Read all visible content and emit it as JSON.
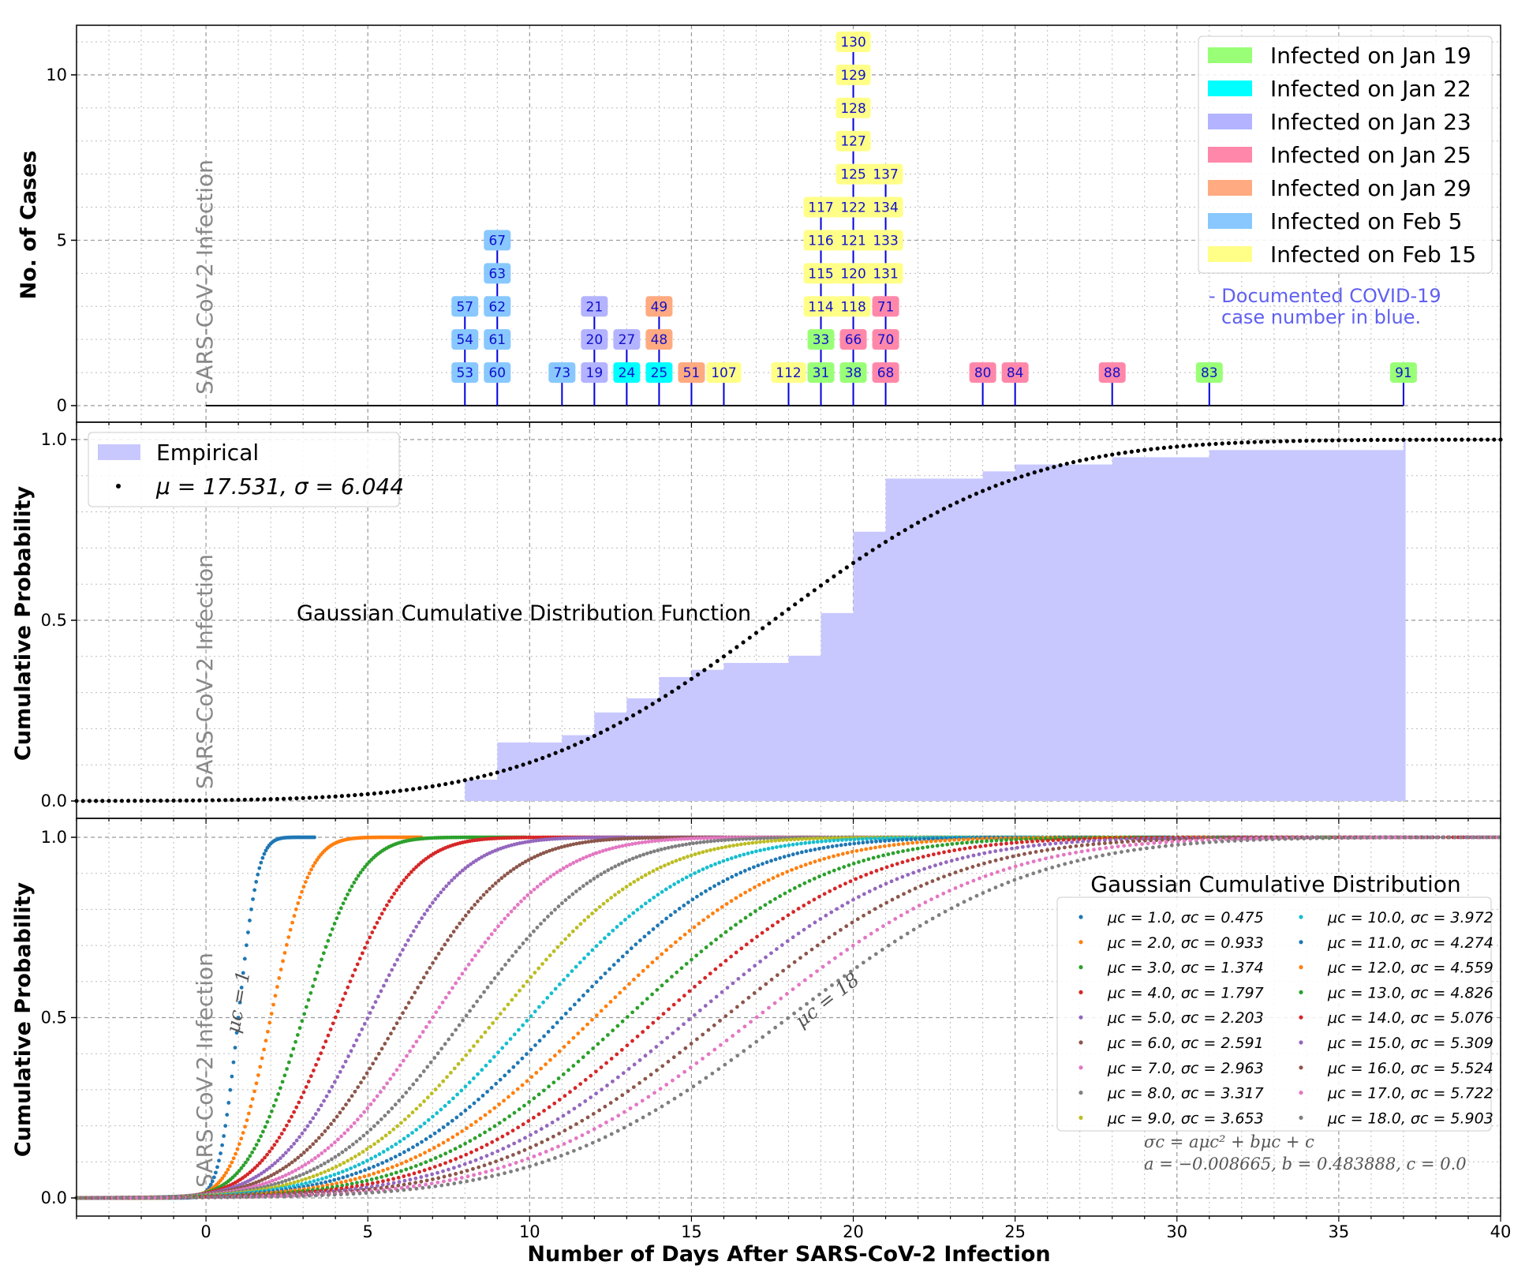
{
  "colors": {
    "jan19": "#99ff77",
    "jan22": "#00ffff",
    "jan23": "#b3b3ff",
    "jan25": "#ff88aa",
    "jan29": "#ffaa80",
    "feb5": "#88c8ff",
    "feb15": "#ffff88",
    "stem": "#0000dd",
    "empirical": "#c8c8ff"
  },
  "chart_data": [
    {
      "type": "bar",
      "panel": "top",
      "xlabel": "",
      "ylabel": "No. of Cases",
      "xlim": [
        -4,
        40
      ],
      "ylim": [
        0,
        11.5
      ],
      "yticks": [
        "0",
        "5",
        "10"
      ],
      "vertical_label": "SARS-CoV-2 Infection",
      "legend": [
        {
          "label": "Infected on Jan 19",
          "color_key": "jan19"
        },
        {
          "label": "Infected on Jan 22",
          "color_key": "jan22"
        },
        {
          "label": "Infected on Jan 23",
          "color_key": "jan23"
        },
        {
          "label": "Infected on Jan 25",
          "color_key": "jan25"
        },
        {
          "label": "Infected on Jan 29",
          "color_key": "jan29"
        },
        {
          "label": "Infected on Feb 5",
          "color_key": "feb5"
        },
        {
          "label": "Infected on Feb 15",
          "color_key": "feb15"
        }
      ],
      "note_line1": "- Documented COVID-19",
      "note_line2": "case number in blue.",
      "stems": [
        {
          "x": 8,
          "cases": [
            {
              "id": "53",
              "g": "feb5"
            },
            {
              "id": "54",
              "g": "feb5"
            },
            {
              "id": "57",
              "g": "feb5"
            }
          ]
        },
        {
          "x": 9,
          "cases": [
            {
              "id": "60",
              "g": "feb5"
            },
            {
              "id": "61",
              "g": "feb5"
            },
            {
              "id": "62",
              "g": "feb5"
            },
            {
              "id": "63",
              "g": "feb5"
            },
            {
              "id": "67",
              "g": "feb5"
            }
          ]
        },
        {
          "x": 11,
          "cases": [
            {
              "id": "73",
              "g": "feb5"
            }
          ]
        },
        {
          "x": 12,
          "cases": [
            {
              "id": "19",
              "g": "jan23"
            },
            {
              "id": "20",
              "g": "jan23"
            },
            {
              "id": "21",
              "g": "jan23"
            }
          ]
        },
        {
          "x": 13,
          "cases": [
            {
              "id": "24",
              "g": "jan22"
            },
            {
              "id": "27",
              "g": "jan23"
            }
          ]
        },
        {
          "x": 14,
          "cases": [
            {
              "id": "25",
              "g": "jan22"
            },
            {
              "id": "48",
              "g": "jan29"
            },
            {
              "id": "49",
              "g": "jan29"
            }
          ]
        },
        {
          "x": 15,
          "cases": [
            {
              "id": "51",
              "g": "jan29"
            }
          ]
        },
        {
          "x": 16,
          "cases": [
            {
              "id": "107",
              "g": "feb15"
            }
          ]
        },
        {
          "x": 18,
          "cases": [
            {
              "id": "112",
              "g": "feb15"
            }
          ]
        },
        {
          "x": 19,
          "cases": [
            {
              "id": "31",
              "g": "jan19"
            },
            {
              "id": "33",
              "g": "jan19"
            },
            {
              "id": "114",
              "g": "feb15"
            },
            {
              "id": "115",
              "g": "feb15"
            },
            {
              "id": "116",
              "g": "feb15"
            },
            {
              "id": "117",
              "g": "feb15"
            }
          ]
        },
        {
          "x": 20,
          "cases": [
            {
              "id": "38",
              "g": "jan19"
            },
            {
              "id": "66",
              "g": "jan25"
            },
            {
              "id": "118",
              "g": "feb15"
            },
            {
              "id": "120",
              "g": "feb15"
            },
            {
              "id": "121",
              "g": "feb15"
            },
            {
              "id": "122",
              "g": "feb15"
            },
            {
              "id": "125",
              "g": "feb15"
            },
            {
              "id": "127",
              "g": "feb15"
            },
            {
              "id": "128",
              "g": "feb15"
            },
            {
              "id": "129",
              "g": "feb15"
            },
            {
              "id": "130",
              "g": "feb15"
            }
          ]
        },
        {
          "x": 21,
          "cases": [
            {
              "id": "68",
              "g": "jan25"
            },
            {
              "id": "70",
              "g": "jan25"
            },
            {
              "id": "71",
              "g": "jan25"
            },
            {
              "id": "131",
              "g": "feb15"
            },
            {
              "id": "133",
              "g": "feb15"
            },
            {
              "id": "134",
              "g": "feb15"
            },
            {
              "id": "137",
              "g": "feb15"
            }
          ]
        },
        {
          "x": 24,
          "cases": [
            {
              "id": "80",
              "g": "jan25"
            }
          ]
        },
        {
          "x": 25,
          "cases": [
            {
              "id": "84",
              "g": "jan25"
            }
          ]
        },
        {
          "x": 28,
          "cases": [
            {
              "id": "88",
              "g": "jan25"
            }
          ]
        },
        {
          "x": 31,
          "cases": [
            {
              "id": "83",
              "g": "jan19"
            }
          ]
        },
        {
          "x": 37,
          "cases": [
            {
              "id": "91",
              "g": "jan19"
            }
          ]
        }
      ]
    },
    {
      "type": "area",
      "panel": "middle",
      "ylabel": "Cumulative Probability",
      "xlim": [
        -4,
        40
      ],
      "ylim": [
        0,
        1.03
      ],
      "yticks": [
        "0.0",
        "0.5",
        "1.0"
      ],
      "vertical_label": "SARS-CoV-2 Infection",
      "legend_empirical": "Empirical",
      "legend_fit": "μ = 17.531, σ = 6.044",
      "annotation": "Gaussian Cumulative Distribution Function",
      "mu": 17.531,
      "sigma": 6.044,
      "empirical_steps": [
        {
          "x0": 8,
          "x1": 9,
          "y": 0.059
        },
        {
          "x0": 9,
          "x1": 11,
          "y": 0.162
        },
        {
          "x0": 11,
          "x1": 12,
          "y": 0.182
        },
        {
          "x0": 12,
          "x1": 13,
          "y": 0.245
        },
        {
          "x0": 13,
          "x1": 14,
          "y": 0.284
        },
        {
          "x0": 14,
          "x1": 15,
          "y": 0.343
        },
        {
          "x0": 15,
          "x1": 16,
          "y": 0.363
        },
        {
          "x0": 16,
          "x1": 18,
          "y": 0.382
        },
        {
          "x0": 18,
          "x1": 19,
          "y": 0.402
        },
        {
          "x0": 19,
          "x1": 20,
          "y": 0.52
        },
        {
          "x0": 20,
          "x1": 21,
          "y": 0.745
        },
        {
          "x0": 21,
          "x1": 24,
          "y": 0.892
        },
        {
          "x0": 24,
          "x1": 25,
          "y": 0.912
        },
        {
          "x0": 25,
          "x1": 28,
          "y": 0.931
        },
        {
          "x0": 28,
          "x1": 31,
          "y": 0.951
        },
        {
          "x0": 31,
          "x1": 37,
          "y": 0.971
        },
        {
          "x0": 37,
          "x1": 37.05,
          "y": 1.0
        }
      ]
    },
    {
      "type": "scatter",
      "panel": "bottom",
      "xlabel": "Number of Days After SARS-CoV-2 Infection",
      "ylabel": "Cumulative Probability",
      "xlim": [
        -4,
        40
      ],
      "ylim": [
        0,
        1.03
      ],
      "xticks": [
        "0",
        "5",
        "10",
        "15",
        "20",
        "25",
        "30",
        "35",
        "40"
      ],
      "yticks": [
        "0.0",
        "0.5",
        "1.0"
      ],
      "vertical_label": "SARS-CoV-2 Infection",
      "legend_title": "Gaussian Cumulative Distribution",
      "formula_line1": "σc = aμc² + bμc + c",
      "formula_line2": "a = −0.008665, b = 0.483888, c = 0.0",
      "curve_label_first": "μc = 1",
      "curve_label_last": "μc = 18",
      "series": [
        {
          "name": "μc = 1.0, σc = 0.475",
          "mu": 1.0,
          "sigma": 0.475,
          "color": "#1f77b4"
        },
        {
          "name": "μc = 2.0, σc = 0.933",
          "mu": 2.0,
          "sigma": 0.933,
          "color": "#ff7f0e"
        },
        {
          "name": "μc = 3.0, σc = 1.374",
          "mu": 3.0,
          "sigma": 1.374,
          "color": "#2ca02c"
        },
        {
          "name": "μc = 4.0, σc = 1.797",
          "mu": 4.0,
          "sigma": 1.797,
          "color": "#d62728"
        },
        {
          "name": "μc = 5.0, σc = 2.203",
          "mu": 5.0,
          "sigma": 2.203,
          "color": "#9467bd"
        },
        {
          "name": "μc = 6.0, σc = 2.591",
          "mu": 6.0,
          "sigma": 2.591,
          "color": "#8c564b"
        },
        {
          "name": "μc = 7.0, σc = 2.963",
          "mu": 7.0,
          "sigma": 2.963,
          "color": "#e377c2"
        },
        {
          "name": "μc = 8.0, σc = 3.317",
          "mu": 8.0,
          "sigma": 3.317,
          "color": "#7f7f7f"
        },
        {
          "name": "μc = 9.0, σc = 3.653",
          "mu": 9.0,
          "sigma": 3.653,
          "color": "#bcbd22"
        },
        {
          "name": "μc = 10.0, σc = 3.972",
          "mu": 10.0,
          "sigma": 3.972,
          "color": "#17becf"
        },
        {
          "name": "μc = 11.0, σc = 4.274",
          "mu": 11.0,
          "sigma": 4.274,
          "color": "#1f77b4"
        },
        {
          "name": "μc = 12.0, σc = 4.559",
          "mu": 12.0,
          "sigma": 4.559,
          "color": "#ff7f0e"
        },
        {
          "name": "μc = 13.0, σc = 4.826",
          "mu": 13.0,
          "sigma": 4.826,
          "color": "#2ca02c"
        },
        {
          "name": "μc = 14.0, σc = 5.076",
          "mu": 14.0,
          "sigma": 5.076,
          "color": "#d62728"
        },
        {
          "name": "μc = 15.0, σc = 5.309",
          "mu": 15.0,
          "sigma": 5.309,
          "color": "#9467bd"
        },
        {
          "name": "μc = 16.0, σc = 5.524",
          "mu": 16.0,
          "sigma": 5.524,
          "color": "#8c564b"
        },
        {
          "name": "μc = 17.0, σc = 5.722",
          "mu": 17.0,
          "sigma": 5.722,
          "color": "#e377c2"
        },
        {
          "name": "μc = 18.0, σc = 5.903",
          "mu": 18.0,
          "sigma": 5.903,
          "color": "#7f7f7f"
        }
      ]
    }
  ]
}
